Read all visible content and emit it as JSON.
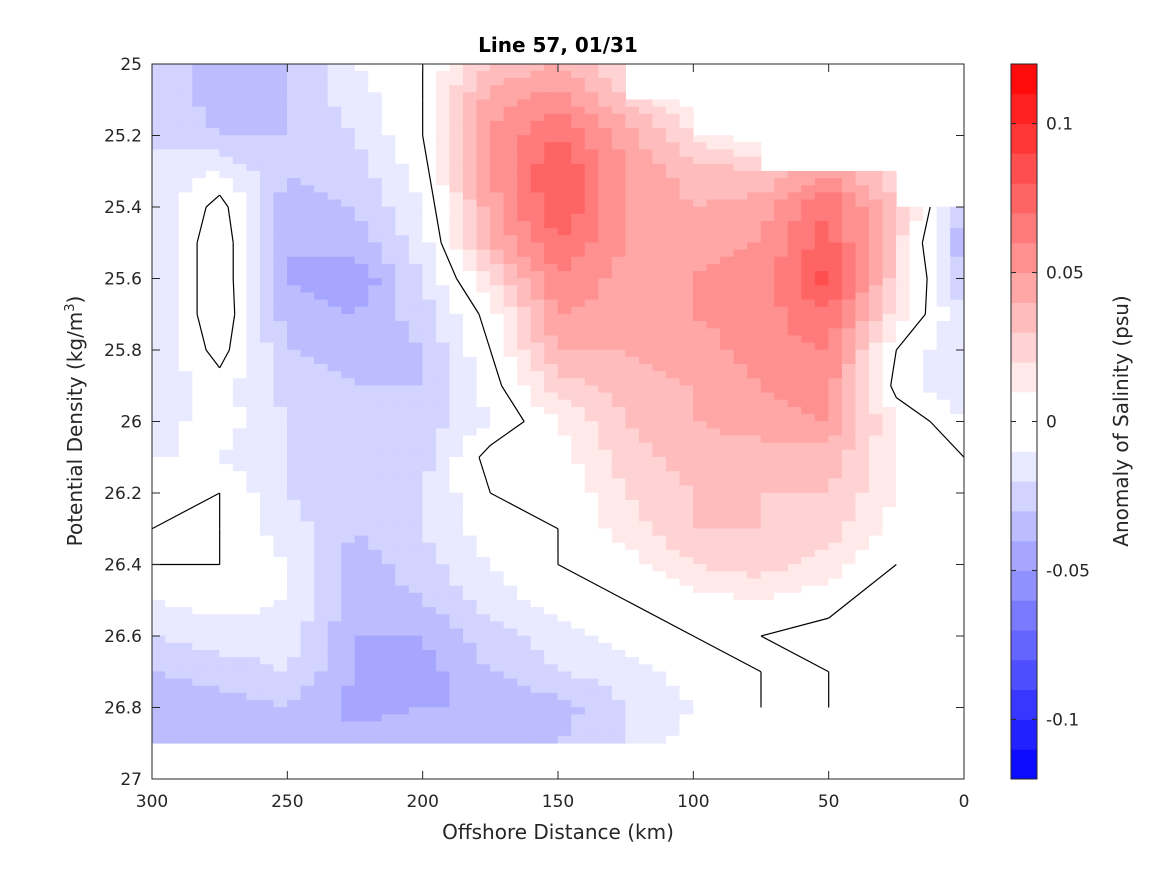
{
  "chart_data": {
    "type": "heatmap",
    "subtype": "filled-contour",
    "title": "Line 57, 01/31",
    "xlabel": "Offshore Distance (km)",
    "ylabel": "Potential Density (kg/m",
    "ylabel_sup": "3",
    "ylabel_tail": ")",
    "colorbar_label": "Anomaly of Salinity (psu)",
    "xlim": [
      300,
      0
    ],
    "x_reversed": true,
    "ylim": [
      25,
      27
    ],
    "y_reversed": true,
    "clim": [
      -0.12,
      0.12
    ],
    "contour_interval": 0.01,
    "colormap": "blue-white-red",
    "colors": {
      "negative_max": "#0000ff",
      "zero": "#ffffff",
      "positive_max": "#ff0000",
      "zero_contour": "#000000"
    },
    "grid": false,
    "x_ticks": [
      300,
      250,
      200,
      150,
      100,
      50,
      0
    ],
    "x_tick_labels": [
      "300",
      "250",
      "200",
      "150",
      "100",
      "50",
      "0"
    ],
    "y_ticks": [
      25,
      25.2,
      25.4,
      25.6,
      25.8,
      26,
      26.2,
      26.4,
      26.6,
      26.8,
      27
    ],
    "y_tick_labels": [
      "25",
      "25.2",
      "25.4",
      "25.6",
      "25.8",
      "26",
      "26.2",
      "26.4",
      "26.6",
      "26.8",
      "27"
    ],
    "colorbar_ticks": [
      -0.1,
      -0.05,
      0,
      0.05,
      0.1
    ],
    "colorbar_tick_labels": [
      "-0.1",
      "-0.05",
      "0",
      "0.05",
      "0.1"
    ],
    "grid_x": [
      300,
      275,
      250,
      225,
      200,
      175,
      150,
      125,
      100,
      75,
      50,
      25,
      0
    ],
    "grid_y": [
      25.0,
      25.1,
      25.2,
      25.3,
      25.4,
      25.5,
      25.6,
      25.7,
      25.8,
      25.9,
      26.0,
      26.1,
      26.2,
      26.3,
      26.4,
      26.5,
      26.6,
      26.7,
      26.8,
      26.9
    ],
    "values": [
      [
        -0.02,
        -0.04,
        -0.03,
        -0.01,
        0.0,
        0.03,
        0.04,
        0.02,
        null,
        null,
        null,
        null,
        null
      ],
      [
        -0.02,
        -0.035,
        -0.03,
        -0.015,
        0.0,
        0.045,
        0.055,
        0.03,
        0.005,
        null,
        null,
        null,
        null
      ],
      [
        -0.02,
        -0.03,
        -0.03,
        -0.02,
        0.0,
        0.05,
        0.07,
        0.045,
        0.02,
        0.0,
        null,
        null,
        null
      ],
      [
        -0.02,
        -0.01,
        -0.03,
        -0.025,
        -0.005,
        0.05,
        0.08,
        0.05,
        0.035,
        0.03,
        0.05,
        0.02,
        null
      ],
      [
        -0.02,
        0.005,
        -0.035,
        -0.03,
        -0.01,
        0.045,
        0.08,
        0.05,
        0.04,
        0.045,
        0.07,
        0.03,
        -0.03
      ],
      [
        -0.02,
        0.01,
        -0.04,
        -0.035,
        -0.015,
        0.04,
        0.07,
        0.05,
        0.045,
        0.05,
        0.075,
        0.025,
        -0.04
      ],
      [
        -0.02,
        0.01,
        -0.04,
        -0.05,
        -0.02,
        0.02,
        0.06,
        0.045,
        0.05,
        0.055,
        0.085,
        0.025,
        -0.03
      ],
      [
        -0.02,
        0.01,
        -0.035,
        -0.04,
        -0.025,
        0.005,
        0.05,
        0.045,
        0.05,
        0.055,
        0.07,
        0.015,
        -0.02
      ],
      [
        -0.02,
        0.005,
        -0.03,
        -0.035,
        -0.03,
        0.0,
        0.04,
        0.04,
        0.045,
        0.055,
        0.06,
        0.0,
        -0.02
      ],
      [
        -0.02,
        -0.005,
        -0.025,
        -0.03,
        -0.03,
        -0.005,
        0.025,
        0.035,
        0.04,
        0.05,
        0.055,
        -0.005,
        -0.02
      ],
      [
        -0.015,
        -0.005,
        -0.02,
        -0.03,
        -0.025,
        -0.01,
        0.01,
        0.03,
        0.04,
        0.045,
        0.05,
        0.01,
        -0.01
      ],
      [
        -0.01,
        -0.01,
        -0.02,
        -0.03,
        -0.025,
        0.005,
        0.005,
        0.025,
        0.035,
        0.035,
        0.035,
        0.01,
        0.0
      ],
      [
        -0.005,
        0.0,
        -0.02,
        -0.03,
        -0.02,
        0.0,
        0.0,
        0.02,
        0.03,
        0.03,
        0.03,
        0.01,
        0.0
      ],
      [
        0.0,
        0.0,
        -0.015,
        -0.03,
        -0.02,
        -0.005,
        0.0,
        0.015,
        0.03,
        0.03,
        0.025,
        0.005,
        0.0
      ],
      [
        0.0,
        0.0,
        -0.01,
        -0.035,
        -0.025,
        -0.01,
        0.0,
        0.005,
        0.02,
        0.025,
        0.015,
        0.0,
        null
      ],
      [
        -0.01,
        -0.005,
        -0.01,
        -0.035,
        -0.03,
        -0.015,
        -0.005,
        0.0,
        0.005,
        0.01,
        0.005,
        -0.01,
        null
      ],
      [
        -0.02,
        -0.015,
        -0.015,
        -0.04,
        -0.04,
        -0.025,
        -0.015,
        -0.005,
        0.0,
        0.0,
        -0.005,
        -0.01,
        null
      ],
      [
        -0.03,
        -0.025,
        -0.02,
        -0.04,
        -0.045,
        -0.03,
        -0.02,
        -0.015,
        -0.005,
        0.0,
        0.0,
        -0.005,
        null
      ],
      [
        -0.04,
        -0.035,
        -0.03,
        -0.045,
        -0.04,
        -0.04,
        -0.035,
        -0.02,
        -0.01,
        0.0,
        0.0,
        -0.005,
        null
      ],
      [
        -0.03,
        -0.03,
        -0.03,
        -0.035,
        -0.03,
        -0.035,
        -0.03,
        -0.02,
        -0.005,
        null,
        null,
        -0.005,
        null
      ]
    ]
  }
}
